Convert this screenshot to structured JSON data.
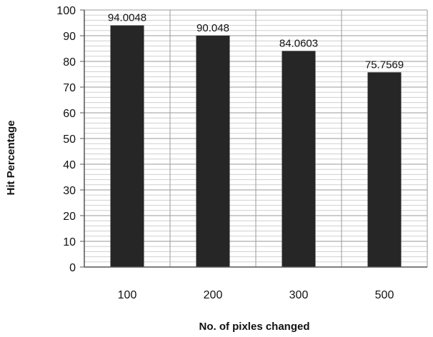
{
  "chart_data": {
    "type": "bar",
    "categories": [
      "100",
      "200",
      "300",
      "500"
    ],
    "values": [
      94.0048,
      90.048,
      84.0603,
      75.7569
    ],
    "data_labels": [
      "94.0048",
      "90.048",
      "84.0603",
      "75.7569"
    ],
    "title": "",
    "xlabel": "No. of pixles changed",
    "ylabel": "Hit Percentage",
    "ylim": [
      0,
      100
    ],
    "yticks": [
      0,
      10,
      20,
      30,
      40,
      50,
      60,
      70,
      80,
      90,
      100
    ],
    "minor_gridlines_per_major": 5,
    "grid": true,
    "legend": "none",
    "colors": {
      "bar": "#262626",
      "major_grid": "#9a9a9a",
      "minor_grid": "#cfcfcf",
      "axis": "#555555"
    }
  }
}
